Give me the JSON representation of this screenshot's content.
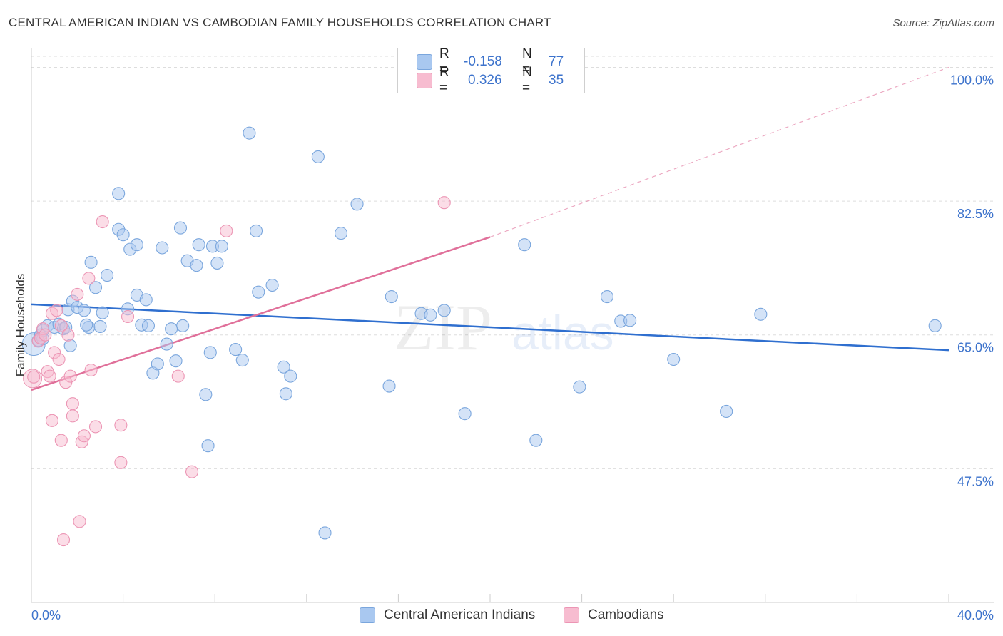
{
  "title": "CENTRAL AMERICAN INDIAN VS CAMBODIAN FAMILY HOUSEHOLDS CORRELATION CHART",
  "source": "Source: ZipAtlas.com",
  "watermark": {
    "zip": "ZIP",
    "atlas": "atlas"
  },
  "legend": {
    "rows": [
      {
        "r_label": "R =",
        "r_value": "-0.158",
        "n_label": "N =",
        "n_value": "77"
      },
      {
        "r_label": "R =",
        "r_value": "0.326",
        "n_label": "N =",
        "n_value": "35"
      }
    ]
  },
  "bottom_legend": [
    "Central American Indians",
    "Cambodians"
  ],
  "colors": {
    "blue_fill": "#a9c8f0",
    "blue_stroke": "#7aa6dd",
    "blue_line": "#2f6fcf",
    "pink_fill": "#f7bcd0",
    "pink_stroke": "#ec95b4",
    "pink_line": "#e0709a",
    "axis_text": "#3d73cc",
    "grid": "#dddddd"
  },
  "chart_data": {
    "type": "scatter",
    "title": "CENTRAL AMERICAN INDIAN VS CAMBODIAN FAMILY HOUSEHOLDS CORRELATION CHART",
    "xlabel": "",
    "ylabel": "Family Households",
    "xlim": [
      0,
      40
    ],
    "ylim": [
      30,
      102
    ],
    "x_tick_labels": {
      "left": "0.0%",
      "right": "40.0%"
    },
    "y_ticks": [
      {
        "value": 100,
        "label": "100.0%"
      },
      {
        "value": 82.5,
        "label": "82.5%"
      },
      {
        "value": 65,
        "label": "65.0%"
      },
      {
        "value": 47.5,
        "label": "47.5%"
      }
    ],
    "series": [
      {
        "name": "Central American Indians",
        "color": "blue",
        "trend": {
          "x0": 0,
          "y0": 69.0,
          "x1": 40,
          "y1": 63.0
        },
        "points": [
          [
            0.3,
            64.3
          ],
          [
            0.4,
            65.0
          ],
          [
            0.5,
            65.6
          ],
          [
            0.7,
            66.2
          ],
          [
            1.0,
            66.0
          ],
          [
            1.2,
            66.4
          ],
          [
            1.4,
            65.8
          ],
          [
            1.6,
            68.3
          ],
          [
            1.8,
            69.4
          ],
          [
            2.0,
            68.6
          ],
          [
            1.7,
            63.6
          ],
          [
            2.3,
            68.2
          ],
          [
            2.5,
            66.0
          ],
          [
            2.6,
            74.5
          ],
          [
            2.8,
            71.2
          ],
          [
            3.0,
            66.1
          ],
          [
            3.1,
            67.9
          ],
          [
            3.3,
            72.8
          ],
          [
            3.8,
            83.5
          ],
          [
            3.8,
            78.8
          ],
          [
            4.0,
            78.1
          ],
          [
            4.2,
            68.4
          ],
          [
            4.3,
            76.2
          ],
          [
            4.6,
            76.8
          ],
          [
            4.6,
            70.2
          ],
          [
            4.8,
            66.3
          ],
          [
            5.0,
            69.6
          ],
          [
            5.1,
            66.2
          ],
          [
            5.3,
            60.0
          ],
          [
            5.5,
            61.2
          ],
          [
            5.7,
            76.4
          ],
          [
            5.9,
            63.8
          ],
          [
            6.1,
            65.8
          ],
          [
            6.3,
            61.6
          ],
          [
            6.5,
            79.0
          ],
          [
            6.6,
            66.2
          ],
          [
            6.8,
            74.7
          ],
          [
            7.2,
            74.1
          ],
          [
            7.3,
            76.8
          ],
          [
            7.6,
            57.2
          ],
          [
            7.7,
            50.5
          ],
          [
            7.8,
            62.7
          ],
          [
            7.9,
            76.6
          ],
          [
            8.1,
            74.4
          ],
          [
            8.3,
            76.6
          ],
          [
            8.9,
            63.1
          ],
          [
            9.2,
            61.7
          ],
          [
            9.5,
            91.4
          ],
          [
            9.8,
            78.6
          ],
          [
            9.9,
            70.6
          ],
          [
            10.5,
            71.5
          ],
          [
            11.0,
            60.8
          ],
          [
            11.1,
            57.3
          ],
          [
            11.3,
            59.6
          ],
          [
            12.5,
            88.3
          ],
          [
            12.8,
            39.1
          ],
          [
            13.5,
            78.3
          ],
          [
            14.2,
            82.1
          ],
          [
            15.6,
            58.3
          ],
          [
            15.7,
            70.0
          ],
          [
            17.0,
            67.8
          ],
          [
            17.4,
            67.6
          ],
          [
            18.0,
            68.2
          ],
          [
            18.9,
            54.7
          ],
          [
            21.5,
            76.8
          ],
          [
            22.0,
            51.2
          ],
          [
            23.9,
            58.2
          ],
          [
            25.1,
            70.0
          ],
          [
            25.7,
            66.8
          ],
          [
            26.1,
            66.9
          ],
          [
            28.0,
            61.8
          ],
          [
            30.3,
            55.0
          ],
          [
            31.8,
            67.7
          ],
          [
            39.4,
            66.2
          ],
          [
            0.5,
            64.5
          ],
          [
            1.5,
            66.0
          ],
          [
            2.4,
            66.3
          ]
        ]
      },
      {
        "name": "Cambodians",
        "color": "pink",
        "trend": {
          "x0": 0,
          "y0": 57.8,
          "x1": 20,
          "y1": 77.8,
          "ext_x1": 40,
          "ext_y1": 100.0
        },
        "points": [
          [
            0.1,
            59.5
          ],
          [
            0.3,
            64.2
          ],
          [
            0.4,
            64.6
          ],
          [
            0.5,
            65.8
          ],
          [
            0.7,
            60.2
          ],
          [
            0.8,
            59.6
          ],
          [
            0.9,
            53.8
          ],
          [
            0.9,
            67.8
          ],
          [
            1.0,
            62.7
          ],
          [
            1.1,
            68.2
          ],
          [
            1.2,
            61.8
          ],
          [
            1.3,
            66.2
          ],
          [
            1.3,
            51.2
          ],
          [
            1.4,
            38.2
          ],
          [
            1.5,
            58.8
          ],
          [
            1.6,
            65.0
          ],
          [
            1.7,
            59.6
          ],
          [
            1.8,
            56.0
          ],
          [
            1.8,
            54.4
          ],
          [
            2.0,
            70.3
          ],
          [
            2.2,
            51.0
          ],
          [
            2.3,
            51.8
          ],
          [
            2.5,
            72.4
          ],
          [
            2.6,
            60.4
          ],
          [
            2.8,
            53.0
          ],
          [
            3.1,
            79.8
          ],
          [
            3.9,
            53.2
          ],
          [
            3.9,
            48.3
          ],
          [
            4.2,
            67.4
          ],
          [
            6.4,
            59.6
          ],
          [
            7.0,
            47.1
          ],
          [
            8.5,
            78.6
          ],
          [
            18.0,
            82.3
          ],
          [
            2.1,
            40.6
          ],
          [
            0.6,
            65.0
          ]
        ]
      }
    ]
  }
}
